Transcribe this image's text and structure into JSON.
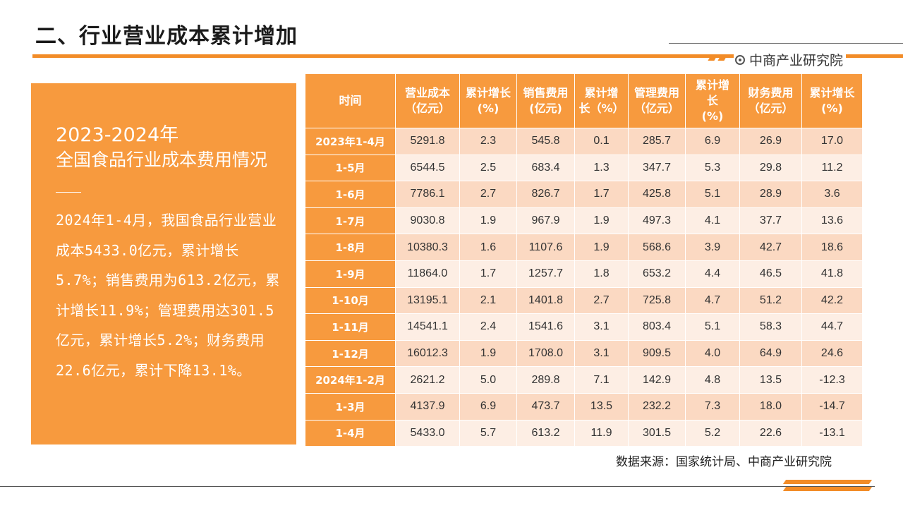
{
  "title": "二、行业营业成本累计增加",
  "brand": {
    "name": "中商产业研究院"
  },
  "colors": {
    "accent": "#f79a3e",
    "row_dark": "#fbd9c2",
    "row_light": "#fdeee4"
  },
  "card": {
    "year": "2023-2024年",
    "subtitle": "全国食品行业成本费用情况",
    "body": "2024年1-4月，我国食品行业营业成本5433.0亿元，累计增长5.7%；销售费用为613.2亿元，累计增长11.9%；管理费用达301.5亿元，累计增长5.2%；财务费用22.6亿元，累计下降13.1%。"
  },
  "table": {
    "headers": [
      "时间",
      "营业成本\n（亿元）",
      "累计增长\n(%)",
      "销售费用\n(亿元)",
      "累计增\n长（%）",
      "管理费用\n（亿元）",
      "累计增\n长\n(%)",
      "财务费用\n（亿元）",
      "累计增长\n(%)"
    ],
    "rows": [
      [
        "2023年1-4月",
        "5291.8",
        "2.3",
        "545.8",
        "0.1",
        "285.7",
        "6.9",
        "26.9",
        "17.0"
      ],
      [
        "1-5月",
        "6544.5",
        "2.5",
        "683.4",
        "1.3",
        "347.7",
        "5.3",
        "29.8",
        "11.2"
      ],
      [
        "1-6月",
        "7786.1",
        "2.7",
        "826.7",
        "1.7",
        "425.8",
        "5.1",
        "28.9",
        "3.6"
      ],
      [
        "1-7月",
        "9030.8",
        "1.9",
        "967.9",
        "1.9",
        "497.3",
        "4.1",
        "37.7",
        "13.6"
      ],
      [
        "1-8月",
        "10380.3",
        "1.6",
        "1107.6",
        "1.9",
        "568.6",
        "3.9",
        "42.7",
        "18.6"
      ],
      [
        "1-9月",
        "11864.0",
        "1.7",
        "1257.7",
        "1.8",
        "653.2",
        "4.4",
        "46.5",
        "41.8"
      ],
      [
        "1-10月",
        "13195.1",
        "2.1",
        "1401.8",
        "2.7",
        "725.8",
        "4.7",
        "51.2",
        "42.2"
      ],
      [
        "1-11月",
        "14541.1",
        "2.4",
        "1541.6",
        "3.1",
        "803.4",
        "5.1",
        "58.3",
        "44.7"
      ],
      [
        "1-12月",
        "16012.3",
        "1.9",
        "1708.0",
        "3.1",
        "909.5",
        "4.0",
        "64.9",
        "24.6"
      ],
      [
        "2024年1-2月",
        "2621.2",
        "5.0",
        "289.8",
        "7.1",
        "142.9",
        "4.8",
        "13.5",
        "-12.3"
      ],
      [
        "1-3月",
        "4137.9",
        "6.9",
        "473.7",
        "13.5",
        "232.2",
        "7.3",
        "18.0",
        "-14.7"
      ],
      [
        "1-4月",
        "5433.0",
        "5.7",
        "613.2",
        "11.9",
        "301.5",
        "5.2",
        "22.6",
        "-13.1"
      ]
    ]
  },
  "source": "数据来源：国家统计局、中商产业研究院"
}
